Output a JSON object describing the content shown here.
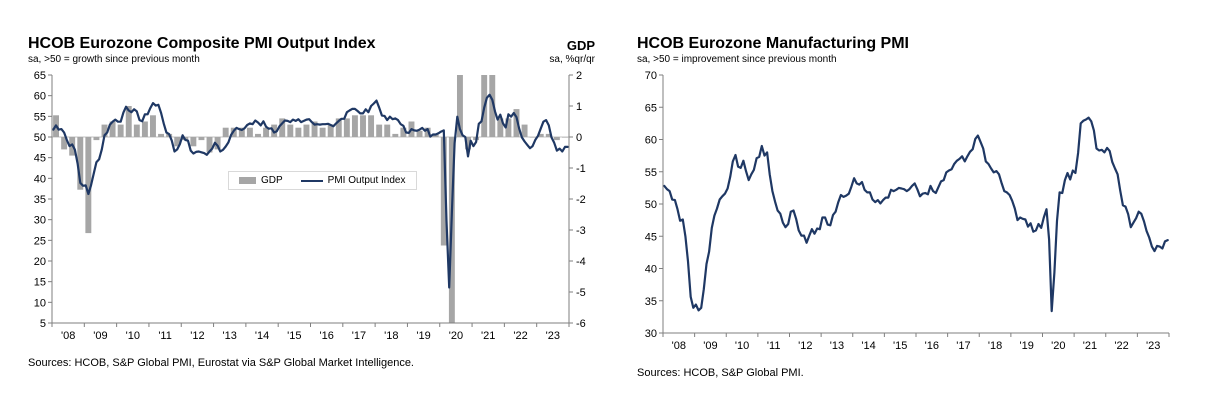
{
  "charts": [
    {
      "title": "HCOB Eurozone Composite PMI Output Index",
      "subtitle": "sa, >50 = growth since previous month",
      "right_axis_title": "GDP",
      "right_axis_subtitle": "sa, %qr/qr",
      "source": "Sources: HCOB, S&P Global PMI, Eurostat via S&P Global Market Intelligence.",
      "legend": [
        {
          "label": "GDP",
          "type": "bar",
          "color": "#A6A6A6"
        },
        {
          "label": "PMI Output Index",
          "type": "line",
          "color": "#1F3864"
        }
      ]
    },
    {
      "title": "HCOB Eurozone Manufacturing PMI",
      "subtitle": "sa, >50 = improvement since previous month",
      "source": "Sources: HCOB, S&P Global PMI."
    }
  ],
  "chart_data": [
    {
      "type": "line+bar",
      "title": "HCOB Eurozone Composite PMI Output Index",
      "subtitle": "sa, >50 = growth since previous month",
      "x_start_year": 2008,
      "x_freq_months": 12,
      "x_tick_labels": [
        "'08",
        "'09",
        "'10",
        "'11",
        "'12",
        "'13",
        "'14",
        "'15",
        "'16",
        "'17",
        "'18",
        "'19",
        "'20",
        "'21",
        "'22",
        "'23"
      ],
      "left_axis": {
        "label": "PMI Output Index",
        "min": 5,
        "max": 65,
        "step": 5
      },
      "right_axis": {
        "label": "GDP, sa, %qr/qr",
        "min": -6,
        "max": 2,
        "step": 1
      },
      "legend_position": "inside-center",
      "grid": false,
      "series": [
        {
          "name": "PMI Output Index",
          "type": "line",
          "axis": "left",
          "freq": "monthly",
          "color": "#1F3864",
          "values": [
            51.8,
            52.8,
            51.8,
            51.9,
            51.1,
            49.3,
            47.8,
            48.2,
            46.9,
            43.6,
            38.9,
            38.2,
            38.3,
            36.2,
            38.3,
            41.1,
            43.9,
            44.6,
            47.0,
            50.4,
            51.1,
            53.0,
            53.7,
            54.2,
            53.7,
            53.7,
            55.9,
            57.3,
            56.4,
            56.0,
            56.7,
            56.2,
            54.1,
            53.8,
            55.5,
            55.5,
            57.0,
            58.2,
            57.6,
            57.8,
            55.8,
            53.3,
            51.1,
            50.7,
            49.1,
            46.5,
            47.0,
            48.3,
            50.4,
            49.3,
            49.1,
            46.7,
            46.0,
            46.4,
            46.5,
            46.3,
            46.1,
            45.7,
            46.5,
            47.2,
            48.6,
            47.9,
            46.5,
            46.9,
            47.7,
            48.7,
            50.5,
            51.5,
            52.2,
            51.9,
            51.7,
            52.1,
            52.9,
            53.3,
            53.1,
            54.0,
            53.5,
            52.8,
            53.8,
            52.5,
            52.0,
            52.1,
            51.1,
            51.4,
            52.6,
            53.3,
            54.0,
            53.9,
            53.6,
            54.2,
            53.9,
            54.3,
            53.6,
            53.9,
            54.2,
            54.3,
            53.6,
            53.0,
            53.1,
            53.0,
            53.1,
            53.1,
            53.2,
            52.9,
            52.6,
            53.3,
            53.9,
            54.4,
            54.4,
            56.0,
            56.4,
            56.8,
            56.8,
            56.3,
            55.7,
            55.7,
            56.7,
            56.0,
            57.5,
            58.1,
            58.8,
            57.1,
            55.2,
            55.1,
            54.1,
            54.9,
            54.3,
            54.5,
            54.1,
            53.1,
            52.7,
            51.1,
            51.0,
            51.9,
            51.6,
            51.5,
            51.8,
            52.2,
            51.5,
            51.9,
            50.1,
            50.6,
            50.6,
            50.9,
            51.3,
            51.6,
            29.7,
            13.6,
            31.9,
            48.5,
            54.9,
            51.9,
            50.4,
            50.0,
            45.3,
            49.1,
            47.8,
            48.8,
            53.2,
            53.8,
            57.1,
            59.5,
            60.2,
            59.0,
            56.2,
            54.2,
            55.4,
            53.3,
            52.3,
            55.5,
            54.9,
            55.8,
            54.8,
            52.0,
            49.9,
            48.9,
            48.1,
            47.3,
            47.8,
            49.3,
            50.3,
            52.0,
            53.7,
            54.1,
            52.8,
            49.9,
            48.6,
            46.7,
            47.2,
            46.5,
            47.6,
            47.6
          ]
        },
        {
          "name": "GDP",
          "type": "bar",
          "axis": "right",
          "freq": "quarterly",
          "color": "#A6A6A6",
          "values": [
            0.7,
            -0.4,
            -0.6,
            -1.7,
            -3.1,
            -0.1,
            0.4,
            0.5,
            0.4,
            1.0,
            0.4,
            0.5,
            0.7,
            0.1,
            0.1,
            -0.3,
            -0.1,
            -0.3,
            -0.1,
            -0.5,
            -0.4,
            0.3,
            0.3,
            0.3,
            0.3,
            0.1,
            0.3,
            0.4,
            0.6,
            0.4,
            0.3,
            0.4,
            0.5,
            0.3,
            0.4,
            0.6,
            0.6,
            0.7,
            0.7,
            0.7,
            0.4,
            0.4,
            0.1,
            0.3,
            0.5,
            0.2,
            0.3,
            0.1,
            -3.5,
            -11.5,
            12.6,
            -0.4,
            -0.1,
            2.2,
            2.3,
            0.6,
            0.6,
            0.9,
            0.4,
            0.0,
            0.1,
            0.1,
            -0.1,
            0.0
          ]
        }
      ]
    },
    {
      "type": "line",
      "title": "HCOB Eurozone Manufacturing PMI",
      "subtitle": "sa, >50 = improvement since previous month",
      "x_start_year": 2008,
      "x_freq_months": 12,
      "x_tick_labels": [
        "'08",
        "'09",
        "'10",
        "'11",
        "'12",
        "'13",
        "'14",
        "'15",
        "'16",
        "'17",
        "'18",
        "'19",
        "'20",
        "'21",
        "'22",
        "'23"
      ],
      "y_axis": {
        "label": "Manufacturing PMI",
        "min": 30,
        "max": 70,
        "step": 5
      },
      "grid": false,
      "series": [
        {
          "name": "Manufacturing PMI",
          "type": "line",
          "axis": "left",
          "freq": "monthly",
          "color": "#1F3864",
          "values": [
            52.8,
            52.3,
            52.0,
            50.7,
            50.6,
            49.2,
            47.4,
            47.6,
            45.0,
            41.1,
            35.6,
            33.9,
            34.4,
            33.5,
            33.9,
            36.8,
            40.7,
            42.6,
            46.3,
            48.2,
            49.3,
            50.7,
            51.2,
            51.6,
            52.4,
            54.2,
            56.6,
            57.6,
            55.8,
            55.6,
            56.7,
            55.1,
            53.7,
            54.6,
            55.3,
            57.1,
            57.3,
            59.0,
            57.5,
            58.0,
            54.6,
            52.0,
            50.4,
            49.0,
            48.5,
            47.1,
            46.4,
            46.9,
            48.8,
            49.0,
            47.7,
            45.9,
            45.1,
            45.1,
            44.0,
            45.1,
            46.1,
            45.4,
            46.2,
            46.1,
            47.9,
            47.9,
            46.8,
            46.7,
            48.3,
            48.8,
            50.3,
            51.4,
            51.1,
            51.3,
            51.6,
            52.7,
            54.0,
            53.2,
            53.0,
            53.4,
            52.2,
            51.8,
            51.8,
            50.7,
            50.3,
            50.6,
            50.1,
            50.6,
            51.0,
            51.0,
            52.2,
            52.0,
            52.2,
            52.5,
            52.4,
            52.3,
            52.0,
            52.3,
            52.8,
            53.2,
            52.3,
            51.2,
            51.6,
            51.7,
            51.5,
            52.8,
            52.0,
            51.7,
            52.6,
            53.5,
            53.7,
            54.9,
            55.2,
            55.4,
            56.2,
            56.7,
            57.0,
            57.4,
            56.6,
            57.4,
            58.1,
            58.5,
            60.1,
            60.6,
            59.6,
            58.6,
            56.6,
            56.2,
            55.5,
            54.9,
            55.1,
            54.6,
            53.2,
            52.0,
            51.8,
            51.4,
            50.5,
            49.3,
            47.5,
            47.9,
            47.7,
            47.6,
            46.5,
            47.0,
            45.7,
            45.9,
            46.9,
            46.3,
            47.9,
            49.2,
            44.5,
            33.4,
            39.4,
            47.4,
            51.8,
            51.7,
            53.7,
            54.8,
            53.8,
            55.2,
            54.8,
            57.9,
            62.5,
            62.9,
            63.1,
            63.4,
            62.8,
            61.4,
            58.6,
            58.3,
            58.4,
            58.0,
            58.7,
            58.2,
            56.5,
            55.5,
            54.6,
            52.1,
            49.8,
            49.6,
            48.4,
            46.4,
            47.1,
            47.8,
            48.8,
            48.5,
            47.3,
            45.8,
            44.8,
            43.4,
            42.7,
            43.5,
            43.4,
            43.1,
            44.2,
            44.4
          ]
        }
      ]
    }
  ]
}
